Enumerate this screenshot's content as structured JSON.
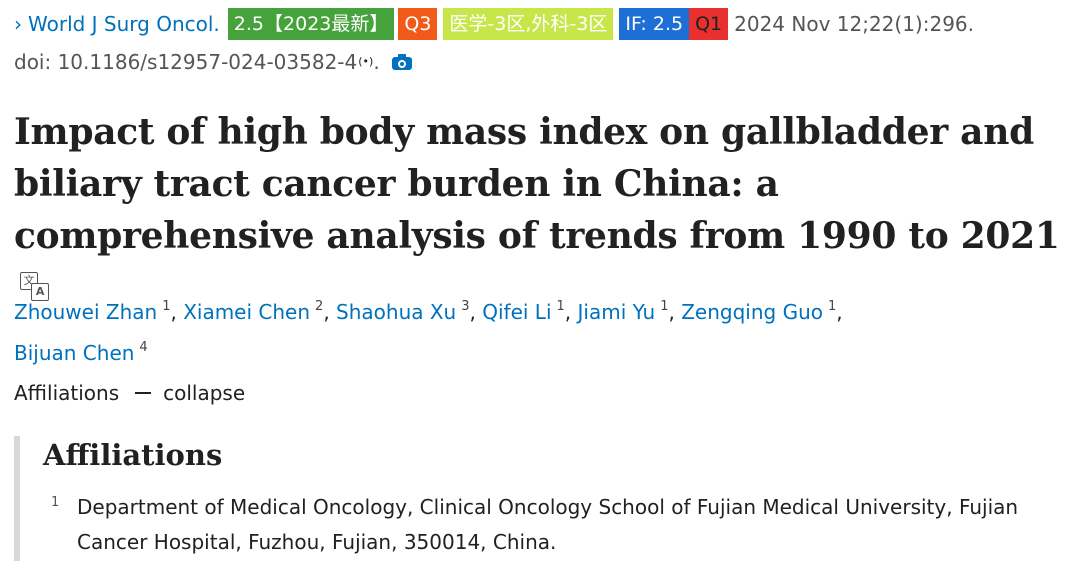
{
  "citation": {
    "chevron": "›",
    "journal": "World J Surg Oncol.",
    "badges": {
      "jif": "2.5【2023最新】",
      "quartile": "Q3",
      "cas": "医学-3区,外科-3区",
      "if": "IF: 2.5",
      "q1": "Q1"
    },
    "date": "2024 Nov 12;22(1):296.",
    "doi": "doi: 10.1186/s12957-024-03582-4",
    "wave": "(•)",
    "period": "."
  },
  "title": "Impact of high body mass index on gallbladder and biliary tract cancer burden in China: a comprehensive analysis of trends from 1990 to 2021",
  "translate_icon": {
    "a": "文",
    "b": "A"
  },
  "authors": [
    {
      "name": "Zhouwei Zhan",
      "aff": "1"
    },
    {
      "name": "Xiamei Chen",
      "aff": "2"
    },
    {
      "name": "Shaohua Xu",
      "aff": "3"
    },
    {
      "name": "Qifei Li",
      "aff": "1"
    },
    {
      "name": "Jiami Yu",
      "aff": "1"
    },
    {
      "name": "Zengqing Guo",
      "aff": "1"
    },
    {
      "name": "Bijuan Chen",
      "aff": "4"
    }
  ],
  "affiliations_toggle": {
    "label": "Affiliations",
    "action": "collapse"
  },
  "affiliations": {
    "heading": "Affiliations",
    "items": [
      {
        "num": "1",
        "text": "Department of Medical Oncology, Clinical Oncology School of Fujian Medical University, Fujian Cancer Hospital, Fuzhou, Fujian, 350014, China."
      }
    ]
  }
}
